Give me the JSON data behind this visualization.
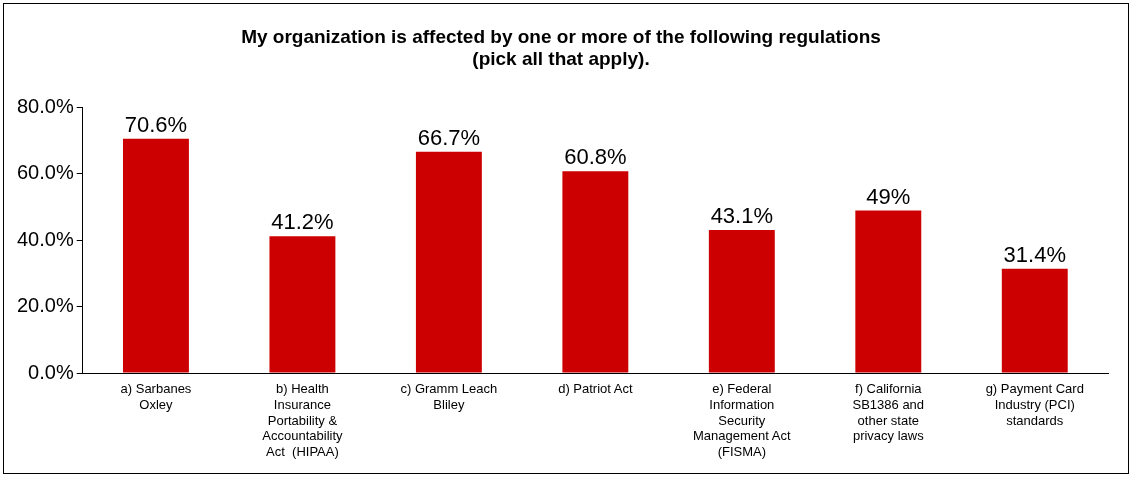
{
  "chart_data": {
    "type": "bar",
    "title": "My organization is affected by one or more of the following regulations (pick all that apply).",
    "categories": [
      "a) Sarbanes Oxley",
      "b) Health Insurance Portability & Accountability Act  (HIPAA)",
      "c) Gramm Leach Bliley",
      "d) Patriot Act",
      "e) Federal Information Security Management Act (FISMA)",
      "f) California SB1386 and other state privacy laws",
      "g) Payment Card Industry (PCI) standards"
    ],
    "values": [
      70.6,
      41.2,
      66.7,
      60.8,
      43.1,
      49,
      31.4
    ],
    "value_labels": [
      "70.6%",
      "41.2%",
      "66.7%",
      "60.8%",
      "43.1%",
      "49%",
      "31.4%"
    ],
    "color": "#cc0000",
    "ylim": [
      0,
      80
    ],
    "yticks": [
      {
        "value": 0,
        "label": "0.0%"
      },
      {
        "value": 20,
        "label": "20.0%"
      },
      {
        "value": 40,
        "label": "40.0%"
      },
      {
        "value": 60,
        "label": "60.0%"
      },
      {
        "value": 80,
        "label": "80.0%"
      }
    ],
    "grid": false,
    "legend": false
  }
}
